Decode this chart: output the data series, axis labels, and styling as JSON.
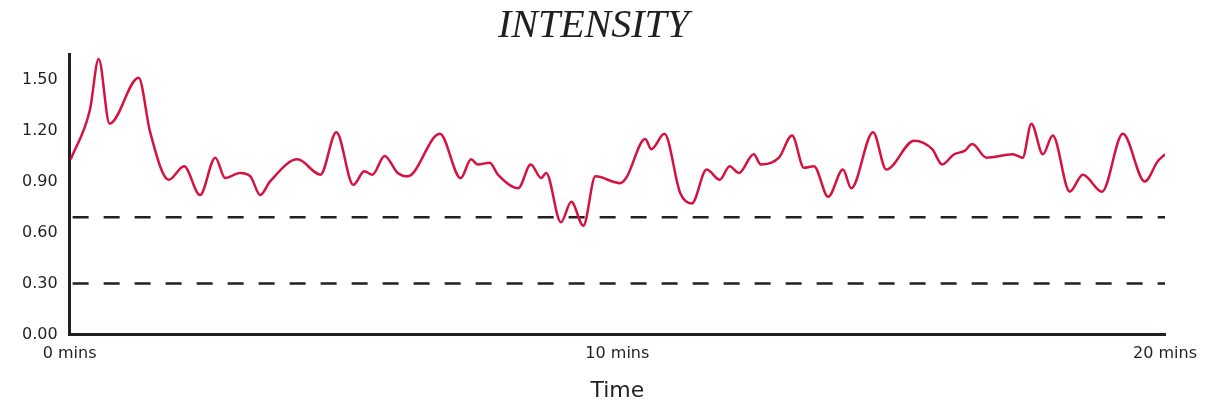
{
  "chart_data": {
    "type": "line",
    "title": "INTENSITY",
    "xlabel": "Time",
    "xlim": [
      0,
      20
    ],
    "xticks": [
      {
        "value": 0,
        "label": "0 mins"
      },
      {
        "value": 10,
        "label": "10 mins"
      },
      {
        "value": 20,
        "label": "20 mins"
      }
    ],
    "ylim": [
      0,
      1.65
    ],
    "yticks": [
      {
        "value": 0,
        "label": "0.00"
      },
      {
        "value": 0.3,
        "label": "0.30"
      },
      {
        "value": 0.6,
        "label": "0.60"
      },
      {
        "value": 0.9,
        "label": "0.90"
      },
      {
        "value": 1.2,
        "label": "1.20"
      },
      {
        "value": 1.5,
        "label": "1.50"
      }
    ],
    "grid": false,
    "legend": false,
    "marker": "none",
    "line_style": "solid",
    "ref_lines": [
      {
        "axis": "y",
        "value": 0.69,
        "color": "#231f20",
        "line_style": "dashed"
      },
      {
        "axis": "y",
        "value": 0.3,
        "color": "#231f20",
        "line_style": "dashed"
      }
    ],
    "series": [
      {
        "color": "#d6123f",
        "x": [
          0.02,
          0.37,
          0.53,
          0.73,
          1.26,
          1.47,
          1.81,
          2.09,
          2.38,
          2.66,
          2.84,
          3.11,
          3.3,
          3.48,
          3.66,
          4.16,
          4.58,
          4.87,
          5.18,
          5.38,
          5.53,
          5.75,
          5.99,
          6.17,
          6.76,
          7.14,
          7.33,
          7.45,
          7.67,
          7.82,
          8.19,
          8.42,
          8.61,
          8.7,
          8.97,
          9.16,
          9.38,
          9.6,
          10.05,
          10.16,
          10.51,
          10.62,
          10.86,
          11.15,
          11.36,
          11.63,
          11.87,
          12.05,
          12.22,
          12.49,
          12.62,
          12.95,
          13.19,
          13.41,
          13.59,
          13.85,
          14.12,
          14.27,
          14.67,
          14.91,
          15.42,
          15.75,
          15.93,
          16.15,
          16.34,
          16.48,
          16.74,
          17.22,
          17.4,
          17.56,
          17.77,
          17.95,
          18.26,
          18.5,
          18.85,
          19.23,
          19.63,
          19.87,
          20
        ],
        "values": [
          1.03,
          1.32,
          1.62,
          1.24,
          1.51,
          1.19,
          0.91,
          0.99,
          0.82,
          1.04,
          0.92,
          0.95,
          0.93,
          0.82,
          0.9,
          1.03,
          0.94,
          1.19,
          0.88,
          0.96,
          0.94,
          1.05,
          0.95,
          0.93,
          1.18,
          0.92,
          1.03,
          1,
          1.01,
          0.94,
          0.86,
          1,
          0.92,
          0.95,
          0.66,
          0.78,
          0.64,
          0.93,
          0.89,
          0.92,
          1.15,
          1.09,
          1.18,
          0.83,
          0.77,
          0.97,
          0.91,
          0.99,
          0.95,
          1.06,
          1,
          1.04,
          1.17,
          0.98,
          0.99,
          0.81,
          0.97,
          0.86,
          1.19,
          0.97,
          1.14,
          1.09,
          1,
          1.06,
          1.08,
          1.12,
          1.04,
          1.06,
          1.04,
          1.24,
          1.06,
          1.17,
          0.84,
          0.94,
          0.84,
          1.18,
          0.9,
          1.02,
          1.06
        ]
      }
    ]
  }
}
